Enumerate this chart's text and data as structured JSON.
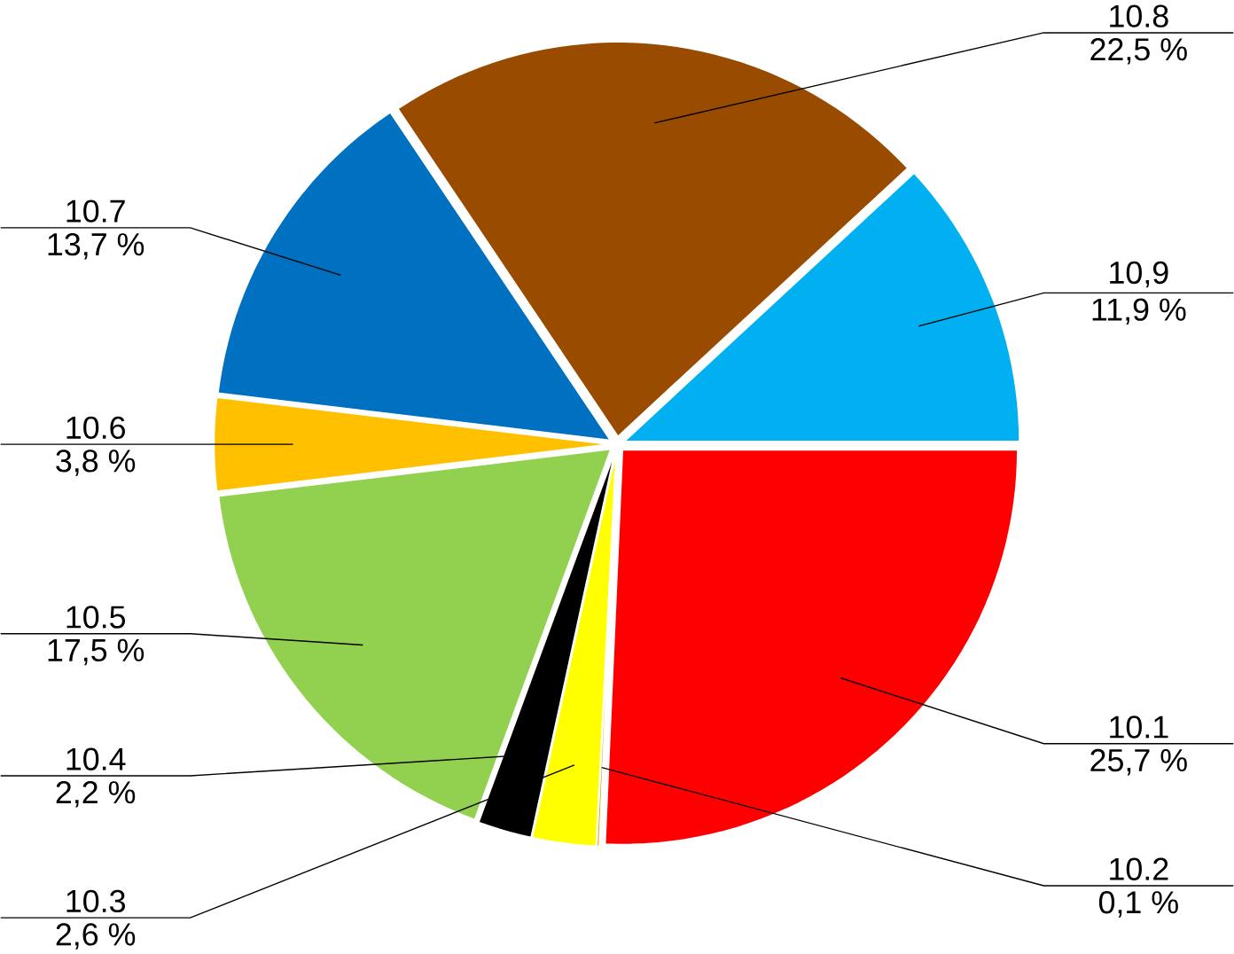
{
  "chart_data": {
    "type": "pie",
    "categories": [
      "10.1",
      "10.2",
      "10.3",
      "10.4",
      "10.5",
      "10.6",
      "10.7",
      "10.8",
      "10,9"
    ],
    "values": [
      25.7,
      0.1,
      2.6,
      2.2,
      17.5,
      3.8,
      13.7,
      22.5,
      11.9
    ],
    "value_labels": [
      "25,7 %",
      "0,1 %",
      "2,6 %",
      "2,2 %",
      "17,5 %",
      "3,8 %",
      "13,7 %",
      "22,5 %",
      "11,9 %"
    ],
    "colors": [
      "#ff0000",
      "#c8b400",
      "#ffff00",
      "#000000",
      "#92d050",
      "#ffc000",
      "#0070c0",
      "#994c00",
      "#00b0f0"
    ]
  }
}
